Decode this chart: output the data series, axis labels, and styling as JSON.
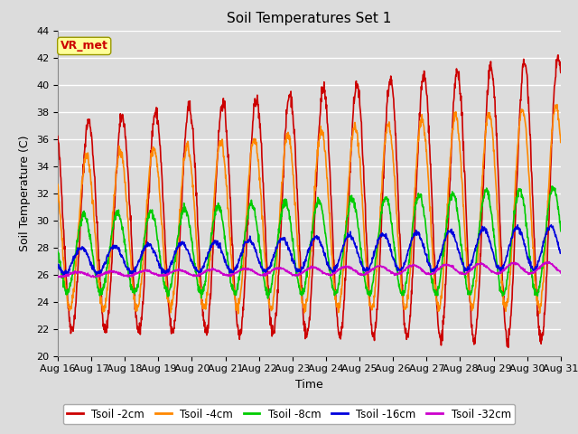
{
  "title": "Soil Temperatures Set 1",
  "xlabel": "Time",
  "ylabel": "Soil Temperature (C)",
  "ylim": [
    20,
    44
  ],
  "yticks": [
    20,
    22,
    24,
    26,
    28,
    30,
    32,
    34,
    36,
    38,
    40,
    42,
    44
  ],
  "x_labels": [
    "Aug 16",
    "Aug 17",
    "Aug 18",
    "Aug 19",
    "Aug 20",
    "Aug 21",
    "Aug 22",
    "Aug 23",
    "Aug 24",
    "Aug 25",
    "Aug 26",
    "Aug 27",
    "Aug 28",
    "Aug 29",
    "Aug 30",
    "Aug 31"
  ],
  "series": [
    {
      "label": "Tsoil -2cm",
      "color": "#cc0000",
      "lw": 1.2
    },
    {
      "label": "Tsoil -4cm",
      "color": "#ff8800",
      "lw": 1.2
    },
    {
      "label": "Tsoil -8cm",
      "color": "#00cc00",
      "lw": 1.2
    },
    {
      "label": "Tsoil -16cm",
      "color": "#0000dd",
      "lw": 1.2
    },
    {
      "label": "Tsoil -32cm",
      "color": "#cc00cc",
      "lw": 1.2
    }
  ],
  "watermark_text": "VR_met",
  "watermark_color": "#cc0000",
  "watermark_bg": "#ffff99",
  "plot_bg": "#dcdcdc",
  "grid_color": "#ffffff",
  "title_fontsize": 11,
  "axis_fontsize": 9,
  "tick_fontsize": 8,
  "legend_fontsize": 8.5
}
